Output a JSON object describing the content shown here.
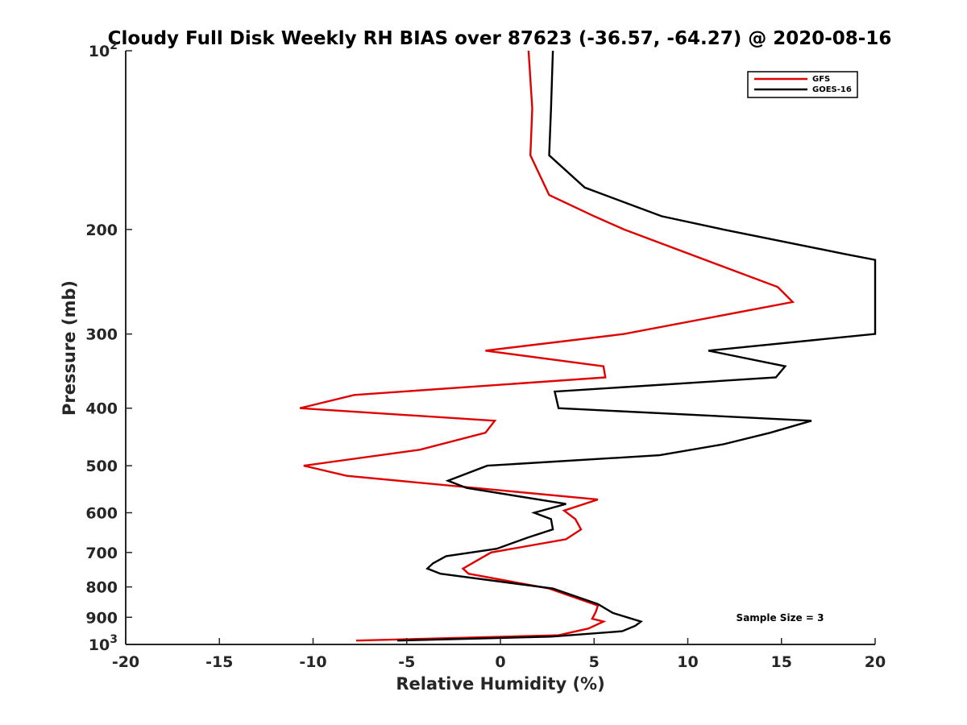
{
  "chart_data": {
    "type": "line",
    "title": "Cloudy Full Disk Weekly RH BIAS over 87623 (-36.57, -64.27) @ 2020-08-16",
    "xlabel": "Relative Humidity (%)",
    "ylabel": "Pressure (mb)",
    "xlim": [
      -20,
      20
    ],
    "ylim": [
      1000,
      100
    ],
    "y_scale": "log",
    "x_ticks": [
      -20,
      -15,
      -10,
      -5,
      0,
      5,
      10,
      15,
      20
    ],
    "x_tick_labels": [
      "-20",
      "-15",
      "-10",
      "-5",
      "0",
      "5",
      "10",
      "15",
      "20"
    ],
    "y_ticks": [
      {
        "value": 100,
        "label": "10",
        "sup": "2"
      },
      {
        "value": 200,
        "label": "200",
        "sup": ""
      },
      {
        "value": 300,
        "label": "300",
        "sup": ""
      },
      {
        "value": 400,
        "label": "400",
        "sup": ""
      },
      {
        "value": 500,
        "label": "500",
        "sup": ""
      },
      {
        "value": 600,
        "label": "600",
        "sup": ""
      },
      {
        "value": 700,
        "label": "700",
        "sup": ""
      },
      {
        "value": 800,
        "label": "800",
        "sup": ""
      },
      {
        "value": 900,
        "label": "900",
        "sup": ""
      },
      {
        "value": 1000,
        "label": "10",
        "sup": "3"
      }
    ],
    "grid": false,
    "legend_position": "top-right",
    "annotation": "Sample Size = 3",
    "series": [
      {
        "name": "GFS",
        "color": "#e00000",
        "points": [
          [
            1.5,
            100
          ],
          [
            1.7,
            125
          ],
          [
            1.6,
            150
          ],
          [
            2.6,
            175
          ],
          [
            5.0,
            190
          ],
          [
            6.6,
            200
          ],
          [
            14.8,
            250
          ],
          [
            15.6,
            265
          ],
          [
            6.6,
            300
          ],
          [
            -0.8,
            320
          ],
          [
            5.5,
            340
          ],
          [
            5.6,
            355
          ],
          [
            -7.8,
            380
          ],
          [
            -10.7,
            400
          ],
          [
            -0.3,
            420
          ],
          [
            -0.8,
            440
          ],
          [
            -4.3,
            470
          ],
          [
            -10.5,
            500
          ],
          [
            -8.2,
            520
          ],
          [
            5.2,
            570
          ],
          [
            3.4,
            595
          ],
          [
            4.0,
            615
          ],
          [
            4.3,
            640
          ],
          [
            3.5,
            665
          ],
          [
            -0.5,
            700
          ],
          [
            -2.0,
            745
          ],
          [
            -1.7,
            760
          ],
          [
            2.6,
            805
          ],
          [
            5.2,
            860
          ],
          [
            5.1,
            880
          ],
          [
            4.9,
            905
          ],
          [
            5.5,
            915
          ],
          [
            4.7,
            940
          ],
          [
            3.1,
            965
          ],
          [
            -7.7,
            985
          ]
        ]
      },
      {
        "name": "GOES-16",
        "color": "#000000",
        "points": [
          [
            2.8,
            100
          ],
          [
            2.7,
            125
          ],
          [
            2.6,
            150
          ],
          [
            4.5,
            170
          ],
          [
            8.6,
            190
          ],
          [
            11.9,
            200
          ],
          [
            18.4,
            220
          ],
          [
            20.0,
            225
          ],
          [
            20.0,
            300
          ],
          [
            11.1,
            320
          ],
          [
            15.2,
            340
          ],
          [
            14.7,
            355
          ],
          [
            2.9,
            375
          ],
          [
            3.1,
            400
          ],
          [
            16.6,
            420
          ],
          [
            14.4,
            440
          ],
          [
            11.9,
            460
          ],
          [
            8.5,
            480
          ],
          [
            -0.7,
            500
          ],
          [
            -2.8,
            530
          ],
          [
            -1.8,
            545
          ],
          [
            3.5,
            580
          ],
          [
            1.8,
            600
          ],
          [
            2.7,
            615
          ],
          [
            2.8,
            640
          ],
          [
            1.5,
            660
          ],
          [
            -0.2,
            690
          ],
          [
            -2.9,
            710
          ],
          [
            -3.6,
            730
          ],
          [
            -3.9,
            745
          ],
          [
            -3.2,
            760
          ],
          [
            2.8,
            805
          ],
          [
            5.2,
            855
          ],
          [
            6.0,
            885
          ],
          [
            7.5,
            915
          ],
          [
            7.2,
            930
          ],
          [
            6.5,
            950
          ],
          [
            2.7,
            970
          ],
          [
            -5.5,
            985
          ]
        ]
      }
    ]
  }
}
